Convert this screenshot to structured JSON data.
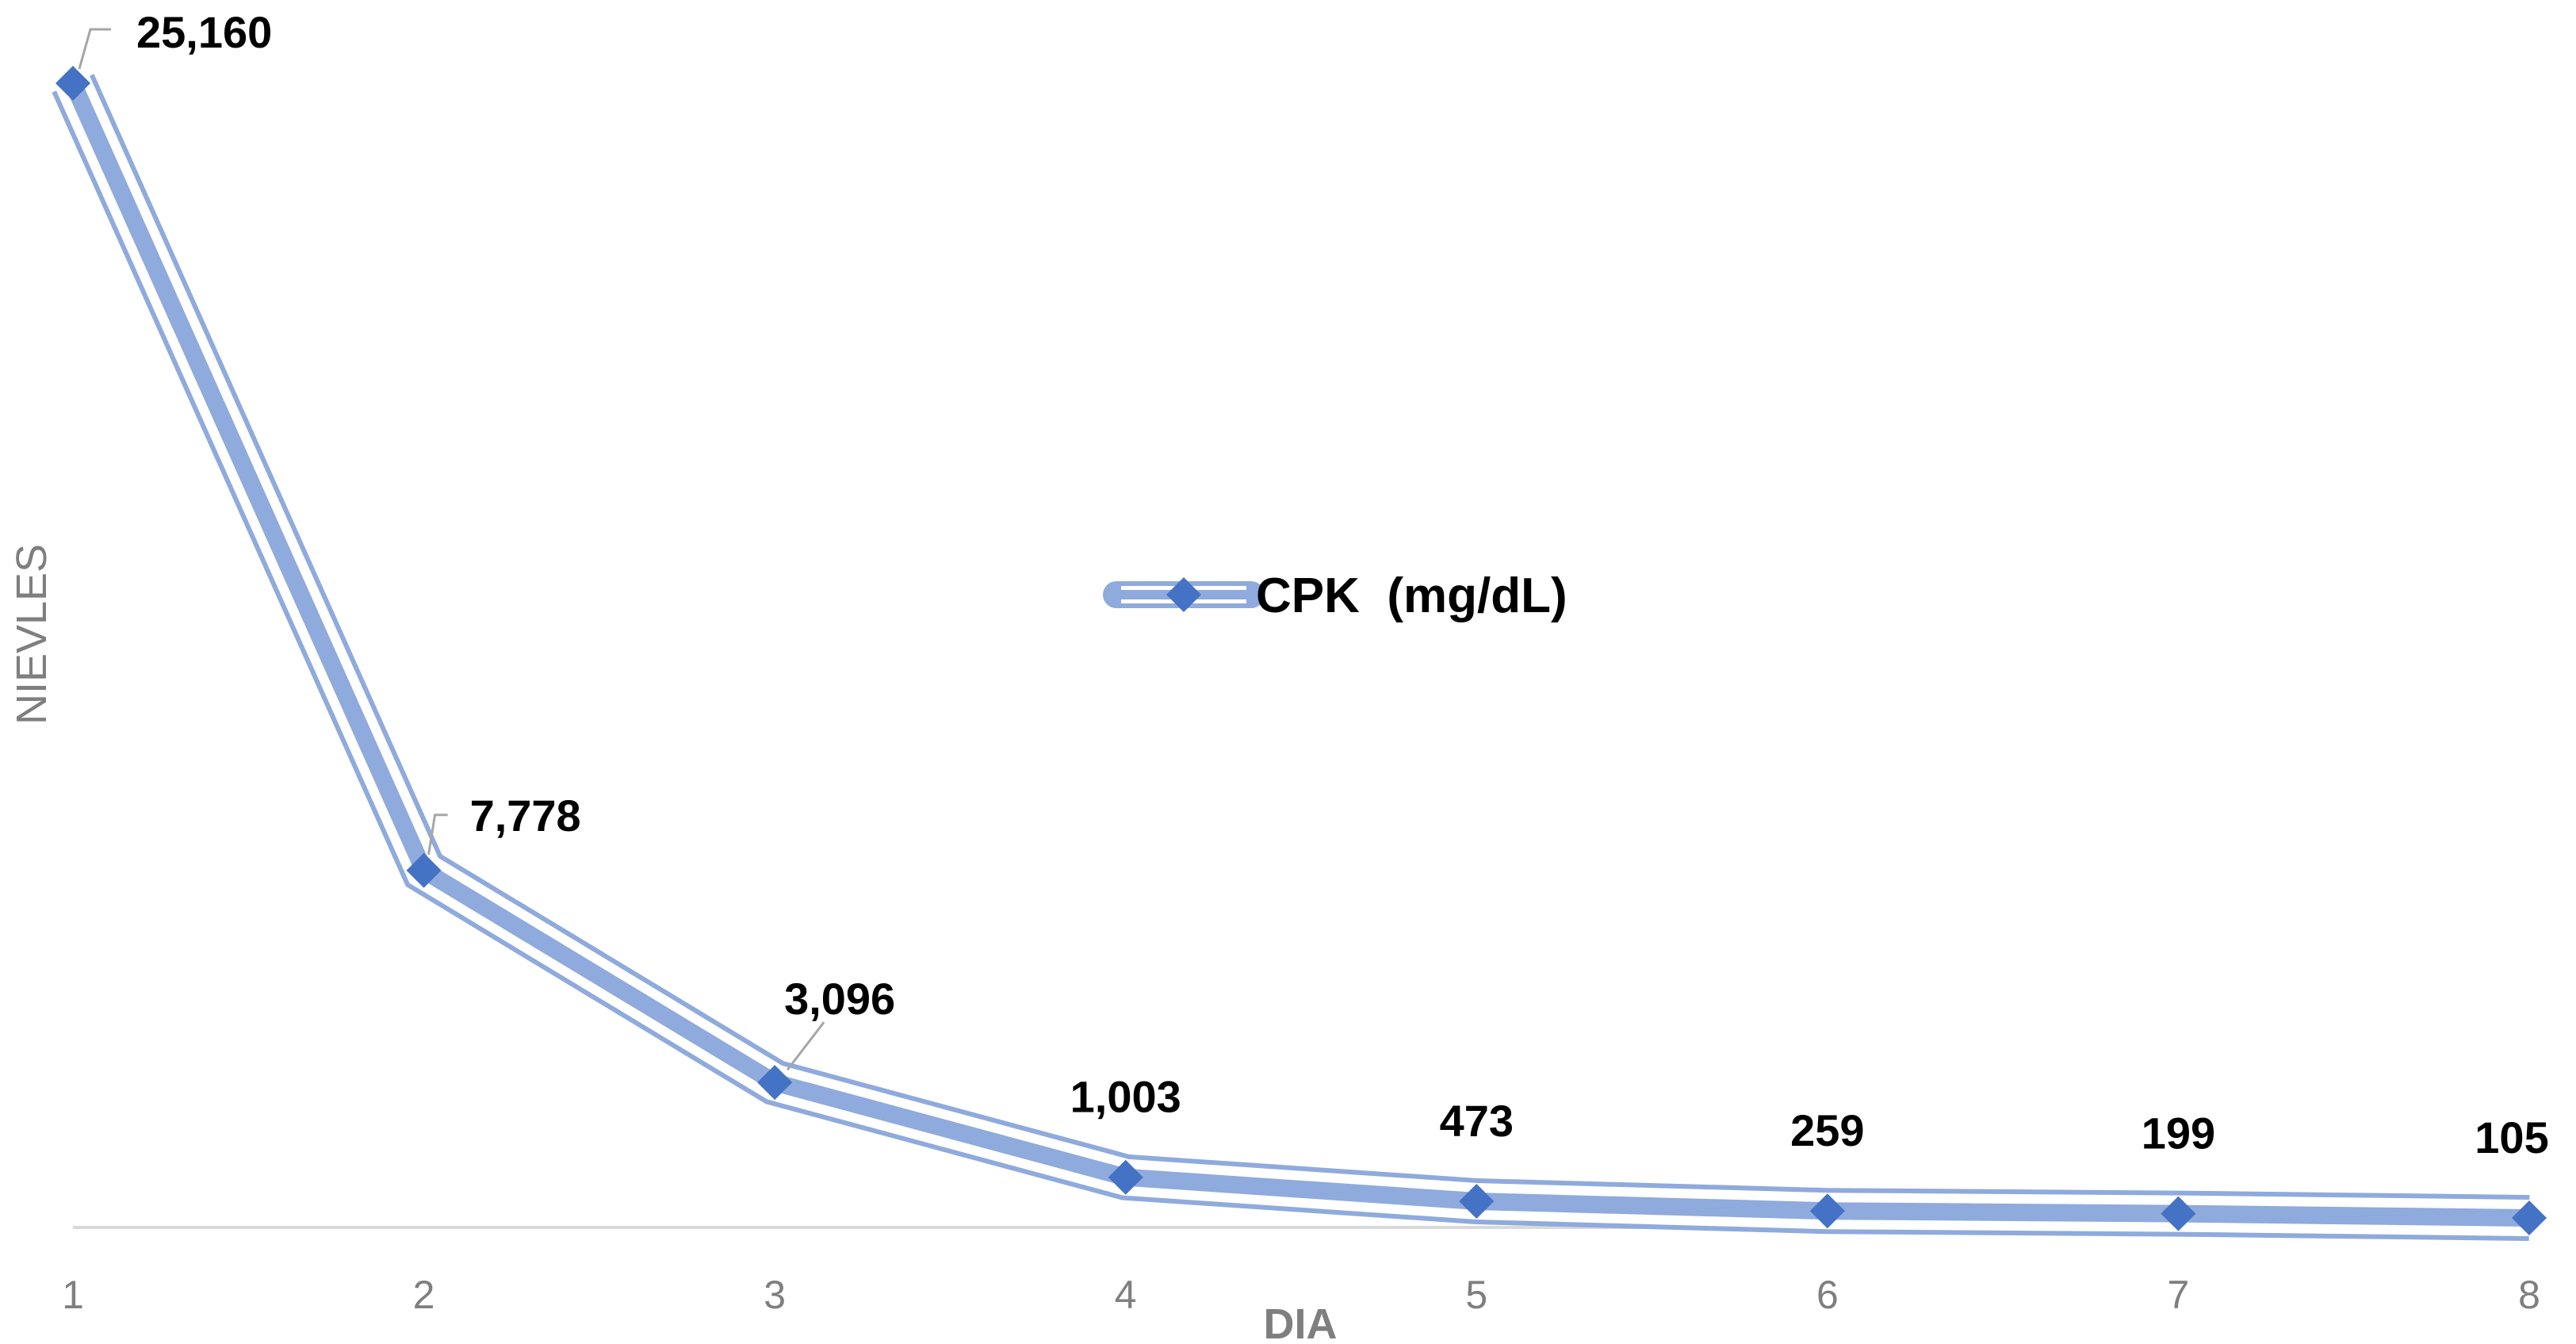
{
  "chart_data": {
    "type": "line",
    "title": "",
    "xlabel": "DIA",
    "ylabel": "NIEVLES",
    "x": [
      1,
      2,
      3,
      4,
      5,
      6,
      7,
      8
    ],
    "series": [
      {
        "name": "CPK  (mg/dL)",
        "values": [
          25160,
          7778,
          3096,
          1003,
          473,
          259,
          199,
          105
        ],
        "labels": [
          "25,160",
          "7,778",
          "3,096",
          "1,003",
          "473",
          "259",
          "199",
          "105"
        ],
        "color": "#4472c4",
        "band_color": "#8faadc"
      }
    ],
    "ylim": [
      0,
      25160
    ],
    "y_ticks_visible": false,
    "grid": false,
    "legend": "center",
    "data_labels": true
  }
}
